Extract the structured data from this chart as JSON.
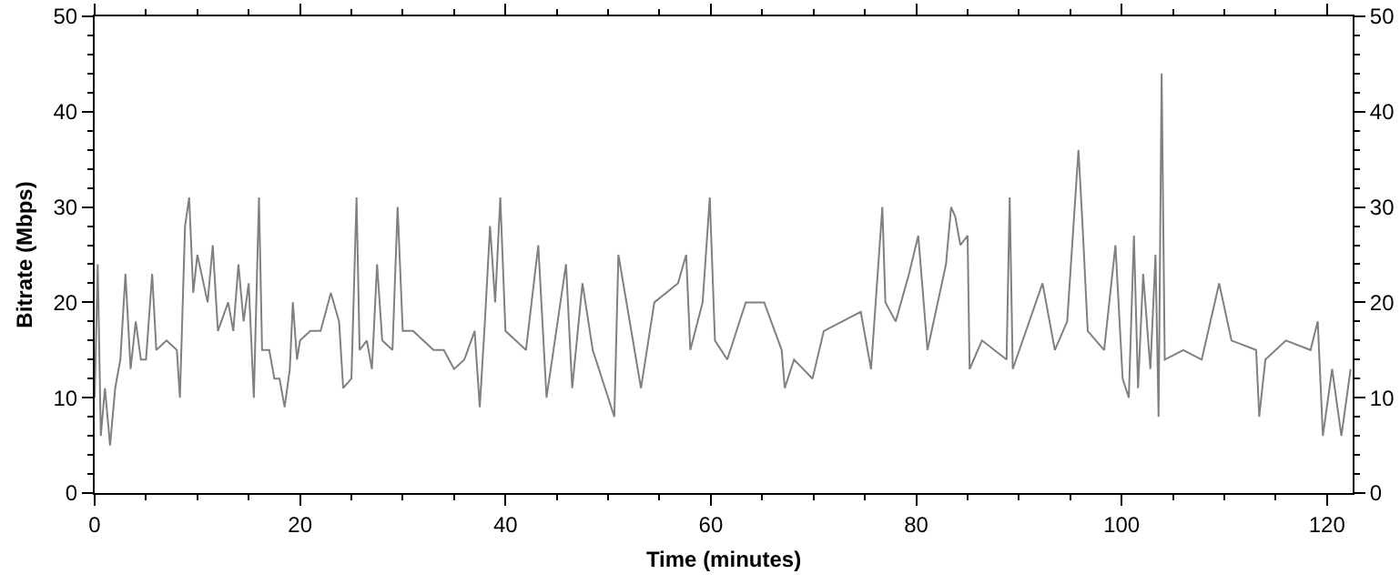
{
  "chart_data": {
    "type": "line",
    "xlabel": "Time (minutes)",
    "ylabel": "Bitrate (Mbps)",
    "xlim": [
      0,
      122.5
    ],
    "xticks": [
      0,
      20,
      40,
      60,
      80,
      100,
      120,
      {
        "value": 5,
        "label": null
      },
      {
        "value": 10,
        "label": null
      },
      {
        "value": 15,
        "label": null
      },
      {
        "value": 25,
        "label": null
      },
      {
        "value": 30,
        "label": null
      },
      {
        "value": 35,
        "label": null
      },
      {
        "value": 45,
        "label": null
      },
      {
        "value": 50,
        "label": null
      },
      {
        "value": 55,
        "label": null
      },
      {
        "value": 65,
        "label": null
      },
      {
        "value": 70,
        "label": null
      },
      {
        "value": 75,
        "label": null
      },
      {
        "value": 85,
        "label": null
      },
      {
        "value": 90,
        "label": null
      },
      {
        "value": 95,
        "label": null
      },
      {
        "value": 105,
        "label": null
      },
      {
        "value": 110,
        "label": null
      },
      {
        "value": 115,
        "label": null
      }
    ],
    "ylim": [
      0,
      50
    ],
    "yticks": [
      0,
      10,
      20,
      30,
      40,
      50,
      {
        "value": 2,
        "label": null
      },
      {
        "value": 4,
        "label": null
      },
      {
        "value": 6,
        "label": null
      },
      {
        "value": 8,
        "label": null
      },
      {
        "value": 12,
        "label": null
      },
      {
        "value": 14,
        "label": null
      },
      {
        "value": 16,
        "label": null
      },
      {
        "value": 18,
        "label": null
      },
      {
        "value": 22,
        "label": null
      },
      {
        "value": 24,
        "label": null
      },
      {
        "value": 26,
        "label": null
      },
      {
        "value": 28,
        "label": null
      },
      {
        "value": 32,
        "label": null
      },
      {
        "value": 34,
        "label": null
      },
      {
        "value": 36,
        "label": null
      },
      {
        "value": 38,
        "label": null
      },
      {
        "value": 42,
        "label": null
      },
      {
        "value": 44,
        "label": null
      },
      {
        "value": 46,
        "label": null
      },
      {
        "value": 48,
        "label": null
      }
    ],
    "y2lim": [
      0,
      50
    ],
    "y2ticks": [
      0,
      10,
      20,
      30,
      40,
      50,
      {
        "value": 2,
        "label": null
      },
      {
        "value": 4,
        "label": null
      },
      {
        "value": 6,
        "label": null
      },
      {
        "value": 8,
        "label": null
      },
      {
        "value": 12,
        "label": null
      },
      {
        "value": 14,
        "label": null
      },
      {
        "value": 16,
        "label": null
      },
      {
        "value": 18,
        "label": null
      },
      {
        "value": 22,
        "label": null
      },
      {
        "value": 24,
        "label": null
      },
      {
        "value": 26,
        "label": null
      },
      {
        "value": 28,
        "label": null
      },
      {
        "value": 32,
        "label": null
      },
      {
        "value": 34,
        "label": null
      },
      {
        "value": 36,
        "label": null
      },
      {
        "value": 38,
        "label": null
      },
      {
        "value": 42,
        "label": null
      },
      {
        "value": 44,
        "label": null
      },
      {
        "value": 46,
        "label": null
      },
      {
        "value": 48,
        "label": null
      }
    ],
    "grid": false,
    "marker": "none",
    "line_style": "solid",
    "series": [
      {
        "color": "#808080",
        "x": [
          0,
          0.3,
          0.6,
          1,
          1.5,
          2,
          2.5,
          3,
          3.5,
          4,
          4.5,
          5,
          5.6,
          6,
          7,
          8,
          8.3,
          8.8,
          9.2,
          9.6,
          10,
          11,
          11.5,
          12,
          13,
          13.5,
          14,
          14.5,
          15,
          15.5,
          16,
          16.3,
          17,
          17.5,
          18,
          18.5,
          19,
          19.3,
          19.7,
          20,
          21,
          22,
          23,
          23.8,
          24.2,
          25,
          25.5,
          25.8,
          26.5,
          27,
          27.5,
          28,
          29,
          29.5,
          30,
          31,
          32,
          33,
          34,
          35,
          36,
          37,
          37.5,
          38,
          38.5,
          39,
          39.5,
          40,
          41,
          42,
          43.2,
          44,
          45.9,
          46.5,
          47.5,
          48.5,
          50.6,
          51,
          53.2,
          54.5,
          56.8,
          57.6,
          58,
          59.2,
          59.9,
          60.4,
          61.6,
          63.4,
          65.2,
          66.9,
          67.2,
          68.1,
          69.9,
          71,
          72.8,
          74.6,
          75.6,
          76.7,
          77,
          78,
          79.3,
          80.2,
          81.1,
          82.9,
          83.4,
          83.8,
          84.3,
          85,
          85.2,
          86.4,
          88.8,
          89.1,
          89.4,
          92.3,
          93.5,
          94.7,
          95.8,
          96.2,
          96.7,
          98.3,
          99.4,
          100.1,
          100.7,
          101.2,
          101.6,
          102.1,
          102.8,
          103.3,
          103.6,
          103.9,
          104.2,
          106,
          107.8,
          109.5,
          110.7,
          113.1,
          113.4,
          114,
          116,
          118.4,
          119.1,
          119.6,
          120.5,
          121.4,
          122.3
        ],
        "values": [
          10,
          24,
          6,
          11,
          5,
          11,
          14,
          23,
          13,
          18,
          14,
          14,
          23,
          15,
          16,
          15,
          10,
          28,
          31,
          21,
          25,
          20,
          26,
          17,
          20,
          17,
          24,
          18,
          22,
          10,
          31,
          15,
          15,
          12,
          12,
          9,
          13,
          20,
          14,
          16,
          17,
          17,
          21,
          18,
          11,
          12,
          31,
          15,
          16,
          13,
          24,
          16,
          15,
          30,
          17,
          17,
          16,
          15,
          15,
          13,
          14,
          17,
          9,
          18,
          28,
          20,
          31,
          17,
          16,
          15,
          26,
          10,
          24,
          11,
          22,
          15,
          8,
          25,
          11,
          20,
          22,
          25,
          15,
          20,
          31,
          16,
          14,
          20,
          20,
          15,
          11,
          14,
          12,
          17,
          18,
          19,
          13,
          30,
          20,
          18,
          23,
          27,
          15,
          24,
          30,
          29,
          26,
          27,
          13,
          16,
          14,
          31,
          13,
          22,
          15,
          18,
          36,
          28,
          17,
          15,
          26,
          12,
          10,
          27,
          11,
          23,
          13,
          25,
          8,
          44,
          14,
          15,
          14,
          22,
          16,
          15,
          8,
          14,
          16,
          15,
          18,
          6,
          13,
          6,
          13
        ]
      }
    ]
  }
}
